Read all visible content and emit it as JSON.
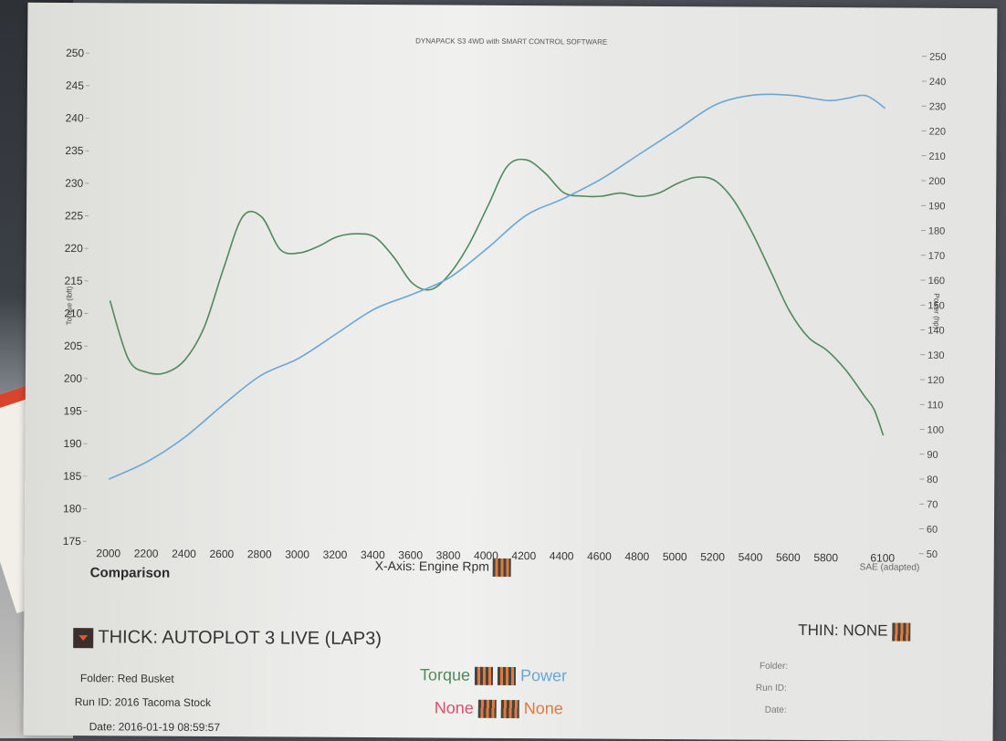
{
  "header": {
    "title": "DYNAPACK S3 4WD with SMART CONTROL SOFTWARE"
  },
  "colors": {
    "torque": "#4f8a5c",
    "power": "#6aa6d8",
    "none_left": "#d9506a",
    "none_right": "#e07a3a"
  },
  "chart_data": {
    "type": "line",
    "title": "DYNAPACK S3 4WD with SMART CONTROL SOFTWARE",
    "xlabel": "X-Axis: Engine Rpm",
    "ylabel_left": "Torque (lbft)",
    "ylabel_right": "Power (hp)",
    "xlim": [
      2000,
      6100
    ],
    "ylim_left": [
      175,
      250
    ],
    "ylim_right": [
      50,
      250
    ],
    "x_ticks": [
      "2000",
      "2200",
      "2400",
      "2600",
      "2800",
      "3000",
      "3200",
      "3400",
      "3600",
      "3800",
      "4000",
      "4200",
      "4400",
      "4600",
      "4800",
      "5000",
      "5200",
      "5400",
      "5600",
      "5800",
      "6100"
    ],
    "y_left_ticks": [
      "175",
      "180",
      "185",
      "190",
      "195",
      "200",
      "205",
      "210",
      "215",
      "220",
      "225",
      "230",
      "235",
      "240",
      "245",
      "250"
    ],
    "y_right_ticks": [
      "50",
      "60",
      "70",
      "80",
      "90",
      "100",
      "110",
      "120",
      "130",
      "140",
      "150",
      "160",
      "170",
      "180",
      "190",
      "200",
      "210",
      "220",
      "230",
      "240",
      "250"
    ],
    "grid": false,
    "series": [
      {
        "name": "Torque",
        "axis": "left",
        "x": [
          2000,
          2100,
          2200,
          2300,
          2400,
          2500,
          2600,
          2700,
          2800,
          2900,
          3000,
          3100,
          3200,
          3300,
          3400,
          3500,
          3600,
          3700,
          3800,
          3900,
          4000,
          4100,
          4200,
          4300,
          4400,
          4500,
          4600,
          4700,
          4800,
          4900,
          5000,
          5100,
          5200,
          5300,
          5400,
          5500,
          5600,
          5700,
          5800,
          5900,
          6000,
          6050,
          6100
        ],
        "y": [
          212,
          203,
          201,
          201,
          203,
          208,
          217,
          225,
          225,
          220,
          219.5,
          220.5,
          222,
          222.5,
          222,
          219,
          215,
          214,
          216.5,
          221,
          227,
          233,
          234,
          232,
          229,
          228.5,
          228.5,
          229,
          228.5,
          229,
          230.5,
          231.5,
          231,
          228,
          223,
          217,
          211,
          207,
          205,
          202,
          198,
          196,
          192
        ]
      },
      {
        "name": "Power",
        "axis": "right",
        "x": [
          2000,
          2200,
          2400,
          2600,
          2800,
          3000,
          3200,
          3400,
          3600,
          3800,
          4000,
          4200,
          4400,
          4600,
          4800,
          5000,
          5200,
          5400,
          5600,
          5800,
          5900,
          6000,
          6100
        ],
        "y": [
          78,
          85,
          95,
          108,
          120,
          127,
          137,
          147,
          153,
          160,
          172,
          185,
          192,
          200,
          210,
          220,
          230,
          234,
          234,
          232,
          233,
          234,
          229
        ]
      }
    ]
  },
  "labels": {
    "x_axis": "X-Axis: Engine Rpm",
    "comparison": "Comparison",
    "sae": "SAE (adapted)",
    "thick": "THICK: AUTOPLOT 3 LIVE (LAP3)",
    "thin": "THIN: NONE",
    "torque_legend": "Torque",
    "power_legend": "Power",
    "none_left": "None",
    "none_right": "None",
    "torque_axis": "Torque (lbft)",
    "power_axis": "Power (hp)"
  },
  "info_left": {
    "folder": "Folder: Red Busket",
    "run_id": "Run ID: 2016 Tacoma Stock",
    "date": "Date: 2016-01-19 08:59:57"
  },
  "info_right": {
    "folder": "Folder:",
    "run_id": "Run ID:",
    "date": "Date:"
  }
}
